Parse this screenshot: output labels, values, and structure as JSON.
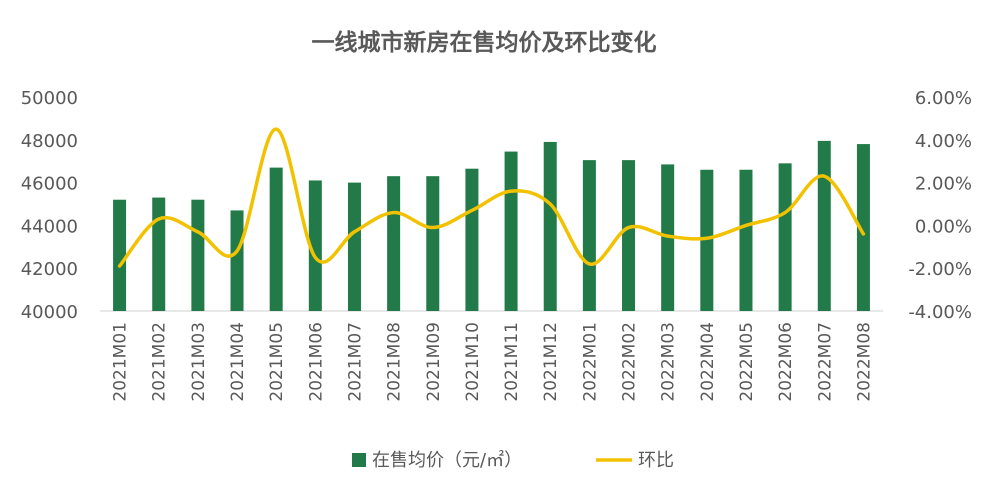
{
  "chart_data": {
    "type": "bar-line-combo",
    "title": "一线城市新房在售均价及环比变化",
    "categories": [
      "2021M01",
      "2021M02",
      "2021M03",
      "2021M04",
      "2021M05",
      "2021M06",
      "2021M07",
      "2021M08",
      "2021M09",
      "2021M10",
      "2021M11",
      "2021M12",
      "2022M01",
      "2022M02",
      "2022M03",
      "2022M04",
      "2022M05",
      "2022M06",
      "2022M07",
      "2022M08"
    ],
    "series": [
      {
        "name": "在售均价（元/㎡）",
        "type": "bar",
        "axis": "left",
        "color": "#217A47",
        "values": [
          45200,
          45300,
          45200,
          44700,
          46700,
          46100,
          46000,
          46300,
          46300,
          46650,
          47450,
          47900,
          47050,
          47050,
          46850,
          46600,
          46600,
          46900,
          47950,
          47800
        ]
      },
      {
        "name": "环比",
        "type": "line",
        "axis": "right",
        "color": "#F2C200",
        "values": [
          -1.9,
          0.3,
          -0.3,
          -1.2,
          4.5,
          -1.5,
          -0.3,
          0.6,
          -0.1,
          0.7,
          1.6,
          1.0,
          -1.8,
          -0.1,
          -0.5,
          -0.6,
          0.0,
          0.6,
          2.3,
          -0.4
        ]
      }
    ],
    "y_left": {
      "min": 40000,
      "max": 50000,
      "ticks": [
        "50000",
        "48000",
        "46000",
        "44000",
        "42000",
        "40000"
      ]
    },
    "y_right": {
      "min": -4.0,
      "max": 6.0,
      "ticks": [
        "6.00%",
        "4.00%",
        "2.00%",
        "0.00%",
        "-2.00%",
        "-4.00%"
      ]
    },
    "legend_position": "bottom",
    "grid": false
  }
}
